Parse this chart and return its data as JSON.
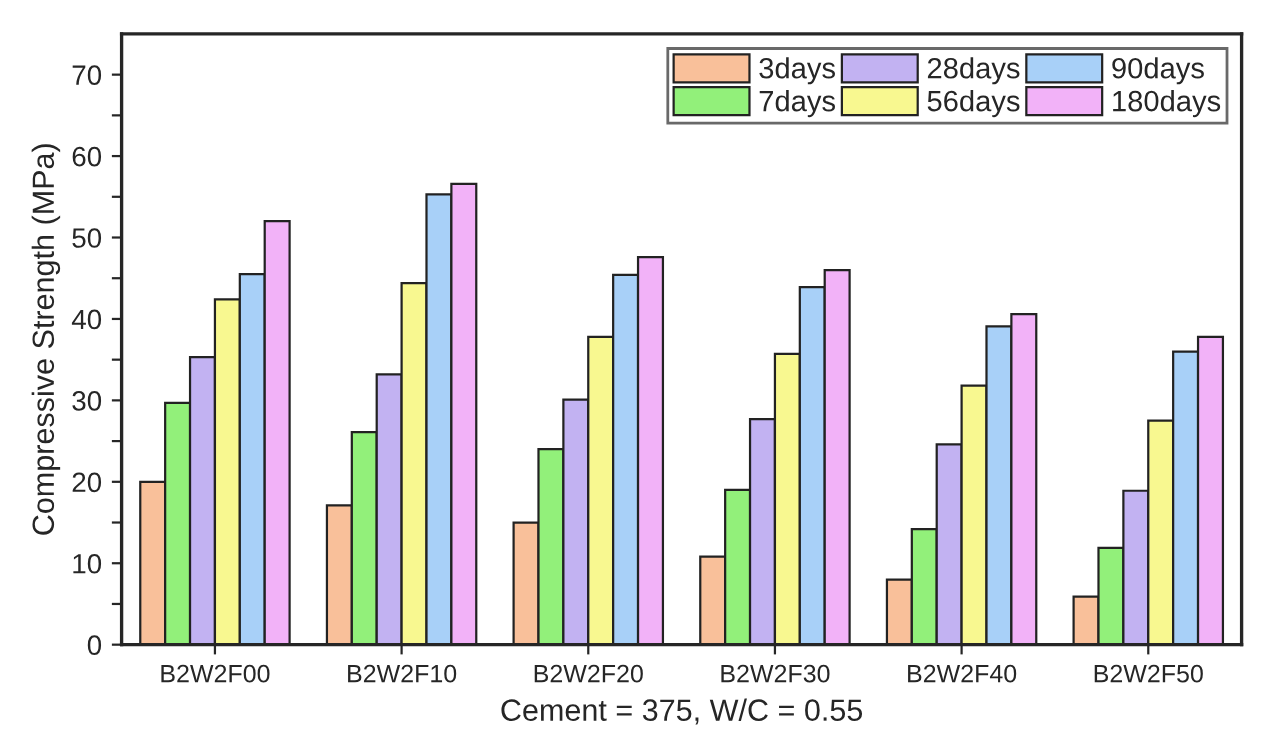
{
  "chart_data": {
    "type": "bar",
    "xlabel": "Cement = 375, W/C = 0.55",
    "ylabel": "Compressive Strength (MPa)",
    "categories": [
      "B2W2F00",
      "B2W2F10",
      "B2W2F20",
      "B2W2F30",
      "B2W2F40",
      "B2W2F50"
    ],
    "series": [
      {
        "name": "3days",
        "color": "#f9c09a",
        "values": [
          20,
          17.1,
          15,
          10.8,
          8,
          5.9
        ]
      },
      {
        "name": "7days",
        "color": "#92f07a",
        "values": [
          29.7,
          26.1,
          24,
          19,
          14.2,
          11.9
        ]
      },
      {
        "name": "28days",
        "color": "#c2b2f2",
        "values": [
          35.3,
          33.2,
          30.1,
          27.7,
          24.6,
          18.9
        ]
      },
      {
        "name": "56days",
        "color": "#f8f890",
        "values": [
          42.4,
          44.4,
          37.8,
          35.7,
          31.8,
          27.5
        ]
      },
      {
        "name": "90days",
        "color": "#a8d0f8",
        "values": [
          45.5,
          55.3,
          45.4,
          43.9,
          39.1,
          36
        ]
      },
      {
        "name": "180days",
        "color": "#f2b2f8",
        "values": [
          52,
          56.6,
          47.6,
          46,
          40.6,
          37.8
        ]
      }
    ],
    "ylim": [
      0,
      75
    ],
    "yticks": [
      0,
      {
        "value": 5,
        "label": null
      },
      10,
      {
        "value": 15,
        "label": null
      },
      20,
      {
        "value": 25,
        "label": null
      },
      30,
      {
        "value": 35,
        "label": null
      },
      40,
      {
        "value": 45,
        "label": null
      },
      50,
      {
        "value": 55,
        "label": null
      },
      60,
      {
        "value": 65,
        "label": null
      },
      70
    ],
    "grid": false,
    "legend": "top right"
  }
}
